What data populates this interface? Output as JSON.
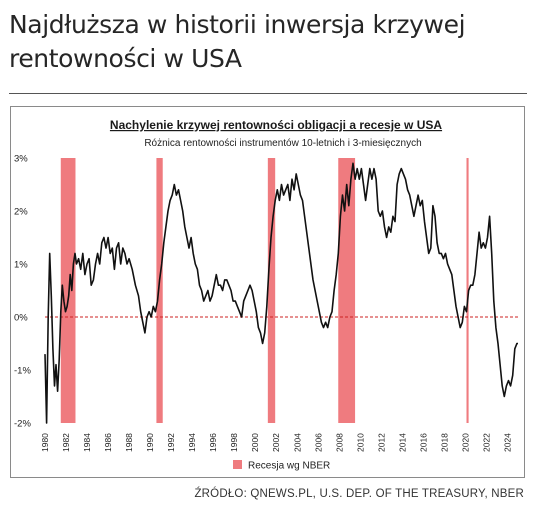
{
  "page": {
    "headline": "Najdłuższa w historii inwersja krzywej rentowności w USA",
    "source": "ŹRÓDŁO: QNEWS.PL, U.S. DEP. OF THE TREASURY, NBER"
  },
  "chart_data": {
    "type": "line",
    "title": "Nachylenie krzywej rentowności obligacji a recesje w USA",
    "subtitle": "Różnica rentowności instrumentów 10-letnich i 3-miesięcznych",
    "xlim": [
      1980,
      2025
    ],
    "ylim": [
      -2,
      3
    ],
    "y_ticks": [
      3,
      2,
      1,
      0,
      -1,
      -2
    ],
    "y_tick_labels": [
      "3%",
      "2%",
      "1%",
      "0%",
      "-1%",
      "-2%"
    ],
    "x_ticks": [
      1980,
      1982,
      1984,
      1986,
      1988,
      1990,
      1992,
      1994,
      1996,
      1998,
      2000,
      2002,
      2004,
      2006,
      2008,
      2010,
      2012,
      2014,
      2016,
      2018,
      2020,
      2022,
      2024
    ],
    "x_tick_labels": [
      "1980",
      "1982",
      "1984",
      "1986",
      "1988",
      "1990",
      "1992",
      "1994",
      "1996",
      "1998",
      "2000",
      "2002",
      "2004",
      "2006",
      "2008",
      "2010",
      "2012",
      "2014",
      "2016",
      "2018",
      "2020",
      "2022",
      "2024"
    ],
    "reference_line": {
      "y": 0,
      "color": "#cc2222",
      "style": "dashed"
    },
    "recessions": [
      [
        1981.5,
        1982.9
      ],
      [
        1990.6,
        1991.2
      ],
      [
        2001.2,
        2001.9
      ],
      [
        2007.9,
        2009.5
      ],
      [
        2020.1,
        2020.3
      ]
    ],
    "legend": {
      "label": "Recesja wg NBER",
      "color": "#ef7b7f",
      "placement": "bottom"
    },
    "colors": {
      "line": "#111111",
      "recession": "#ef7b7f",
      "zero_line": "#cc2222"
    },
    "series": [
      {
        "values": [
          [
            1980.0,
            -0.7
          ],
          [
            1980.15,
            -2.0
          ],
          [
            1980.3,
            0.0
          ],
          [
            1980.45,
            1.2
          ],
          [
            1980.6,
            0.4
          ],
          [
            1980.75,
            -0.6
          ],
          [
            1980.9,
            -1.3
          ],
          [
            1981.05,
            -0.9
          ],
          [
            1981.2,
            -1.4
          ],
          [
            1981.35,
            -0.8
          ],
          [
            1981.5,
            0.1
          ],
          [
            1981.65,
            0.6
          ],
          [
            1981.8,
            0.3
          ],
          [
            1981.95,
            0.1
          ],
          [
            1982.1,
            0.2
          ],
          [
            1982.25,
            0.4
          ],
          [
            1982.4,
            0.8
          ],
          [
            1982.55,
            0.5
          ],
          [
            1982.7,
            1.0
          ],
          [
            1982.85,
            1.2
          ],
          [
            1983.0,
            1.0
          ],
          [
            1983.2,
            1.1
          ],
          [
            1983.4,
            0.9
          ],
          [
            1983.6,
            1.2
          ],
          [
            1983.8,
            0.8
          ],
          [
            1984.0,
            1.0
          ],
          [
            1984.2,
            1.1
          ],
          [
            1984.4,
            0.6
          ],
          [
            1984.6,
            0.7
          ],
          [
            1984.8,
            1.0
          ],
          [
            1985.0,
            1.2
          ],
          [
            1985.2,
            1.0
          ],
          [
            1985.4,
            1.4
          ],
          [
            1985.6,
            1.5
          ],
          [
            1985.8,
            1.3
          ],
          [
            1986.0,
            1.5
          ],
          [
            1986.2,
            1.2
          ],
          [
            1986.4,
            1.3
          ],
          [
            1986.6,
            0.9
          ],
          [
            1986.8,
            1.3
          ],
          [
            1987.0,
            1.4
          ],
          [
            1987.2,
            1.0
          ],
          [
            1987.4,
            1.3
          ],
          [
            1987.6,
            1.2
          ],
          [
            1987.8,
            1.0
          ],
          [
            1988.0,
            1.1
          ],
          [
            1988.3,
            0.9
          ],
          [
            1988.6,
            0.6
          ],
          [
            1988.9,
            0.4
          ],
          [
            1989.1,
            0.1
          ],
          [
            1989.3,
            -0.1
          ],
          [
            1989.5,
            -0.3
          ],
          [
            1989.7,
            0.0
          ],
          [
            1989.9,
            0.1
          ],
          [
            1990.1,
            0.0
          ],
          [
            1990.3,
            0.2
          ],
          [
            1990.5,
            0.1
          ],
          [
            1990.7,
            0.3
          ],
          [
            1990.9,
            0.7
          ],
          [
            1991.1,
            1.0
          ],
          [
            1991.3,
            1.4
          ],
          [
            1991.5,
            1.7
          ],
          [
            1991.7,
            2.0
          ],
          [
            1991.9,
            2.2
          ],
          [
            1992.1,
            2.3
          ],
          [
            1992.3,
            2.5
          ],
          [
            1992.5,
            2.3
          ],
          [
            1992.7,
            2.4
          ],
          [
            1992.9,
            2.2
          ],
          [
            1993.1,
            2.0
          ],
          [
            1993.3,
            1.7
          ],
          [
            1993.5,
            1.5
          ],
          [
            1993.7,
            1.3
          ],
          [
            1993.9,
            1.5
          ],
          [
            1994.1,
            1.2
          ],
          [
            1994.3,
            1.0
          ],
          [
            1994.5,
            0.9
          ],
          [
            1994.7,
            0.6
          ],
          [
            1994.9,
            0.5
          ],
          [
            1995.1,
            0.3
          ],
          [
            1995.3,
            0.4
          ],
          [
            1995.5,
            0.5
          ],
          [
            1995.7,
            0.3
          ],
          [
            1995.9,
            0.4
          ],
          [
            1996.1,
            0.6
          ],
          [
            1996.3,
            0.8
          ],
          [
            1996.5,
            0.6
          ],
          [
            1996.7,
            0.6
          ],
          [
            1996.9,
            0.5
          ],
          [
            1997.1,
            0.7
          ],
          [
            1997.3,
            0.7
          ],
          [
            1997.5,
            0.6
          ],
          [
            1997.7,
            0.5
          ],
          [
            1997.9,
            0.3
          ],
          [
            1998.1,
            0.3
          ],
          [
            1998.3,
            0.2
          ],
          [
            1998.5,
            0.1
          ],
          [
            1998.7,
            0.0
          ],
          [
            1998.9,
            0.3
          ],
          [
            1999.1,
            0.4
          ],
          [
            1999.3,
            0.5
          ],
          [
            1999.5,
            0.6
          ],
          [
            1999.7,
            0.5
          ],
          [
            1999.9,
            0.3
          ],
          [
            2000.1,
            0.1
          ],
          [
            2000.3,
            -0.2
          ],
          [
            2000.5,
            -0.3
          ],
          [
            2000.7,
            -0.5
          ],
          [
            2000.9,
            -0.3
          ],
          [
            2001.1,
            0.2
          ],
          [
            2001.3,
            0.9
          ],
          [
            2001.5,
            1.5
          ],
          [
            2001.7,
            1.9
          ],
          [
            2001.9,
            2.2
          ],
          [
            2002.1,
            2.4
          ],
          [
            2002.3,
            2.2
          ],
          [
            2002.5,
            2.5
          ],
          [
            2002.7,
            2.3
          ],
          [
            2002.9,
            2.4
          ],
          [
            2003.1,
            2.5
          ],
          [
            2003.3,
            2.2
          ],
          [
            2003.5,
            2.6
          ],
          [
            2003.7,
            2.4
          ],
          [
            2003.9,
            2.7
          ],
          [
            2004.1,
            2.5
          ],
          [
            2004.3,
            2.3
          ],
          [
            2004.5,
            2.2
          ],
          [
            2004.7,
            1.9
          ],
          [
            2004.9,
            1.6
          ],
          [
            2005.1,
            1.3
          ],
          [
            2005.3,
            1.0
          ],
          [
            2005.5,
            0.7
          ],
          [
            2005.7,
            0.5
          ],
          [
            2005.9,
            0.3
          ],
          [
            2006.1,
            0.1
          ],
          [
            2006.3,
            -0.1
          ],
          [
            2006.5,
            -0.2
          ],
          [
            2006.7,
            -0.1
          ],
          [
            2006.9,
            -0.2
          ],
          [
            2007.1,
            0.0
          ],
          [
            2007.3,
            0.1
          ],
          [
            2007.5,
            0.5
          ],
          [
            2007.7,
            0.8
          ],
          [
            2007.9,
            1.2
          ],
          [
            2008.1,
            1.9
          ],
          [
            2008.3,
            2.3
          ],
          [
            2008.5,
            2.0
          ],
          [
            2008.7,
            2.5
          ],
          [
            2008.9,
            2.1
          ],
          [
            2009.1,
            2.6
          ],
          [
            2009.3,
            2.9
          ],
          [
            2009.5,
            2.6
          ],
          [
            2009.7,
            2.8
          ],
          [
            2009.9,
            2.6
          ],
          [
            2010.1,
            2.8
          ],
          [
            2010.3,
            2.5
          ],
          [
            2010.5,
            2.2
          ],
          [
            2010.7,
            2.5
          ],
          [
            2010.9,
            2.8
          ],
          [
            2011.1,
            2.6
          ],
          [
            2011.3,
            2.8
          ],
          [
            2011.5,
            2.6
          ],
          [
            2011.7,
            2.0
          ],
          [
            2011.9,
            1.9
          ],
          [
            2012.1,
            2.0
          ],
          [
            2012.3,
            1.7
          ],
          [
            2012.5,
            1.5
          ],
          [
            2012.7,
            1.7
          ],
          [
            2012.9,
            1.6
          ],
          [
            2013.1,
            1.9
          ],
          [
            2013.3,
            1.8
          ],
          [
            2013.5,
            2.5
          ],
          [
            2013.7,
            2.7
          ],
          [
            2013.9,
            2.8
          ],
          [
            2014.1,
            2.7
          ],
          [
            2014.3,
            2.6
          ],
          [
            2014.5,
            2.4
          ],
          [
            2014.7,
            2.3
          ],
          [
            2014.9,
            2.1
          ],
          [
            2015.1,
            1.9
          ],
          [
            2015.3,
            2.1
          ],
          [
            2015.5,
            2.3
          ],
          [
            2015.7,
            2.1
          ],
          [
            2015.9,
            2.2
          ],
          [
            2016.1,
            1.8
          ],
          [
            2016.3,
            1.5
          ],
          [
            2016.5,
            1.2
          ],
          [
            2016.7,
            1.3
          ],
          [
            2016.9,
            2.1
          ],
          [
            2017.1,
            1.9
          ],
          [
            2017.3,
            1.4
          ],
          [
            2017.5,
            1.2
          ],
          [
            2017.7,
            1.2
          ],
          [
            2017.9,
            1.1
          ],
          [
            2018.1,
            1.2
          ],
          [
            2018.3,
            1.0
          ],
          [
            2018.5,
            0.9
          ],
          [
            2018.7,
            0.8
          ],
          [
            2018.9,
            0.5
          ],
          [
            2019.1,
            0.2
          ],
          [
            2019.3,
            0.0
          ],
          [
            2019.5,
            -0.2
          ],
          [
            2019.7,
            -0.1
          ],
          [
            2019.9,
            0.2
          ],
          [
            2020.1,
            0.1
          ],
          [
            2020.3,
            0.5
          ],
          [
            2020.5,
            0.6
          ],
          [
            2020.7,
            0.6
          ],
          [
            2020.9,
            0.8
          ],
          [
            2021.1,
            1.2
          ],
          [
            2021.3,
            1.6
          ],
          [
            2021.5,
            1.3
          ],
          [
            2021.7,
            1.4
          ],
          [
            2021.9,
            1.3
          ],
          [
            2022.1,
            1.5
          ],
          [
            2022.3,
            1.9
          ],
          [
            2022.5,
            1.2
          ],
          [
            2022.7,
            0.3
          ],
          [
            2022.9,
            -0.2
          ],
          [
            2023.1,
            -0.5
          ],
          [
            2023.3,
            -0.9
          ],
          [
            2023.5,
            -1.3
          ],
          [
            2023.7,
            -1.5
          ],
          [
            2023.9,
            -1.3
          ],
          [
            2024.1,
            -1.2
          ],
          [
            2024.3,
            -1.3
          ],
          [
            2024.5,
            -1.1
          ],
          [
            2024.7,
            -0.6
          ],
          [
            2024.9,
            -0.5
          ],
          [
            2025.0,
            -0.5
          ]
        ]
      }
    ]
  }
}
